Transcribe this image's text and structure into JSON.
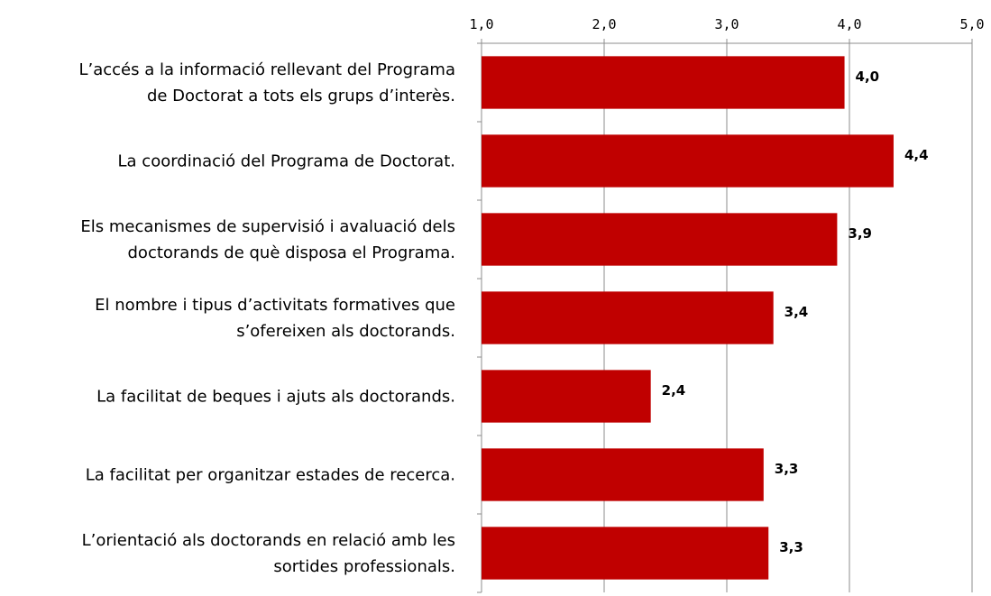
{
  "chart_data": {
    "type": "bar",
    "orientation": "horizontal",
    "categories": [
      "L’accés a la informació rellevant del Programa\nde Doctorat a tots els grups d’interès.",
      "La coordinació del Programa de Doctorat.",
      "Els mecanismes de supervisió i avaluació dels\ndoctorands de què disposa el Programa.",
      "El nombre i tipus d’activitats formatives que\ns’ofereixen als doctorands.",
      "La facilitat de beques i ajuts als doctorands.",
      "La facilitat per organitzar estades de recerca.",
      "L’orientació als doctorands en relació amb les\nsortides professionals."
    ],
    "values": [
      3.96,
      4.36,
      3.9,
      3.38,
      2.38,
      3.3,
      3.34
    ],
    "value_labels": [
      "4,0",
      "4,4",
      "3,9",
      "3,4",
      "2,4",
      "3,3",
      "3,3"
    ],
    "color": "#c00000",
    "xlim": [
      1,
      5
    ],
    "xticks": [
      {
        "value": 1,
        "label": "1,0"
      },
      {
        "value": 2,
        "label": "2,0"
      },
      {
        "value": 3,
        "label": "3,0"
      },
      {
        "value": 4,
        "label": "4,0"
      },
      {
        "value": 5,
        "label": "5,0"
      }
    ],
    "grid": true
  }
}
